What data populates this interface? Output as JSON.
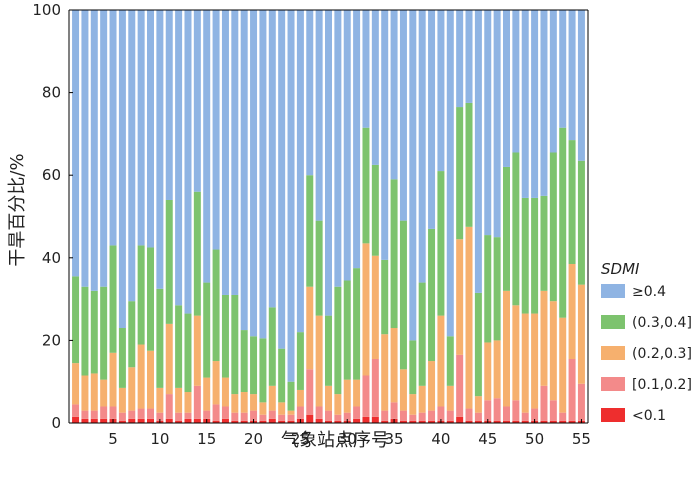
{
  "chart_data": {
    "type": "bar",
    "stacked": true,
    "percent": true,
    "xlabel": "气象站点序号",
    "ylabel": "干旱百分比/%",
    "ylim": [
      0,
      100
    ],
    "x": [
      1,
      2,
      3,
      4,
      5,
      6,
      7,
      8,
      9,
      10,
      11,
      12,
      13,
      14,
      15,
      16,
      17,
      18,
      19,
      20,
      21,
      22,
      23,
      24,
      25,
      26,
      27,
      28,
      29,
      30,
      31,
      32,
      33,
      34,
      35,
      36,
      37,
      38,
      39,
      40,
      41,
      42,
      43,
      44,
      45,
      46,
      47,
      48,
      49,
      50,
      51,
      52,
      53,
      54,
      55
    ],
    "x_ticks": [
      "5",
      "10",
      "15",
      "20",
      "25",
      "30",
      "35",
      "40",
      "45",
      "50",
      "55"
    ],
    "y_ticks": [
      "0",
      "20",
      "40",
      "60",
      "80",
      "100"
    ],
    "legend": {
      "title": "SDMI",
      "placement": "right"
    },
    "series": [
      {
        "name": "<0.1",
        "color": "#ee2e2e",
        "values": [
          1.5,
          1,
          1,
          1,
          1,
          0.5,
          1,
          1,
          1,
          0.5,
          1,
          0.5,
          1,
          1,
          1,
          0.5,
          1,
          0.5,
          0.5,
          0.5,
          0.5,
          1,
          0.5,
          0.5,
          1,
          2,
          1,
          0.5,
          0.5,
          0.5,
          1,
          1.5,
          1.5,
          0.5,
          1,
          0.5,
          0.5,
          0.5,
          0.5,
          0.5,
          0.5,
          1.5,
          0.5,
          0.5,
          0.5,
          0.5,
          0.5,
          0.5,
          0.5,
          0.5,
          0.5,
          0.5,
          0.5,
          0.5,
          0.5
        ]
      },
      {
        "name": "[0.1,0.2]",
        "color": "#f38a8a",
        "values": [
          3,
          2,
          2,
          3,
          3,
          2,
          2,
          2.5,
          2.5,
          2,
          6,
          2,
          1.5,
          8,
          2,
          4,
          3,
          2,
          2,
          2.5,
          1.5,
          2,
          1.5,
          1.5,
          3,
          11,
          3,
          2.5,
          1.5,
          2,
          3,
          10,
          14,
          2.5,
          4,
          2.5,
          1.5,
          2,
          2.5,
          3.5,
          2.5,
          15,
          3,
          2,
          5,
          5.5,
          3.5,
          5,
          2,
          3,
          8.5,
          5,
          2,
          15,
          9
        ]
      },
      {
        "name": "(0.2,0.3]",
        "color": "#f6b06e",
        "values": [
          10,
          8.5,
          9,
          6.5,
          13,
          6,
          10.5,
          15.5,
          14,
          6,
          17,
          6,
          5,
          17,
          8,
          10.5,
          7,
          4.5,
          5,
          4,
          3,
          6,
          3,
          1,
          4,
          20,
          22,
          6,
          5,
          8,
          6.5,
          32,
          25,
          18.5,
          18,
          10,
          5,
          6.5,
          12,
          22,
          6,
          28,
          44,
          4,
          14,
          14,
          28,
          23,
          24,
          23,
          23,
          24,
          23,
          23,
          24
        ]
      },
      {
        "name": "(0.3,0.4]",
        "color": "#7dc36e",
        "values": [
          21,
          21.5,
          20,
          22.5,
          26,
          14.5,
          16,
          24,
          25,
          24,
          30,
          20,
          19,
          30,
          23,
          27,
          20,
          24,
          15,
          14,
          15.5,
          19,
          13,
          7,
          14,
          27,
          23,
          17,
          26,
          24,
          27,
          28,
          22,
          18,
          36,
          36,
          13,
          25,
          32,
          35,
          12,
          32,
          30,
          25,
          26,
          25,
          30,
          37,
          28,
          28,
          23,
          36,
          46,
          30,
          30
        ]
      },
      {
        "name": "≥0.4",
        "color": "#8fb4e3",
        "values": [
          64.5,
          67,
          68,
          67,
          57,
          77,
          70.5,
          57,
          57.5,
          67.5,
          46,
          71.5,
          73.5,
          44,
          66,
          58,
          69,
          69,
          77.5,
          79,
          79.5,
          72,
          82,
          90,
          78,
          40,
          51,
          74,
          67,
          65.5,
          62.5,
          28.5,
          37.5,
          60.5,
          41,
          51,
          80,
          66,
          53,
          39,
          79,
          23.5,
          22.5,
          68.5,
          54.5,
          55,
          38,
          34.5,
          45.5,
          45.5,
          45,
          34.5,
          28.5,
          31.5,
          36.5
        ]
      }
    ]
  }
}
